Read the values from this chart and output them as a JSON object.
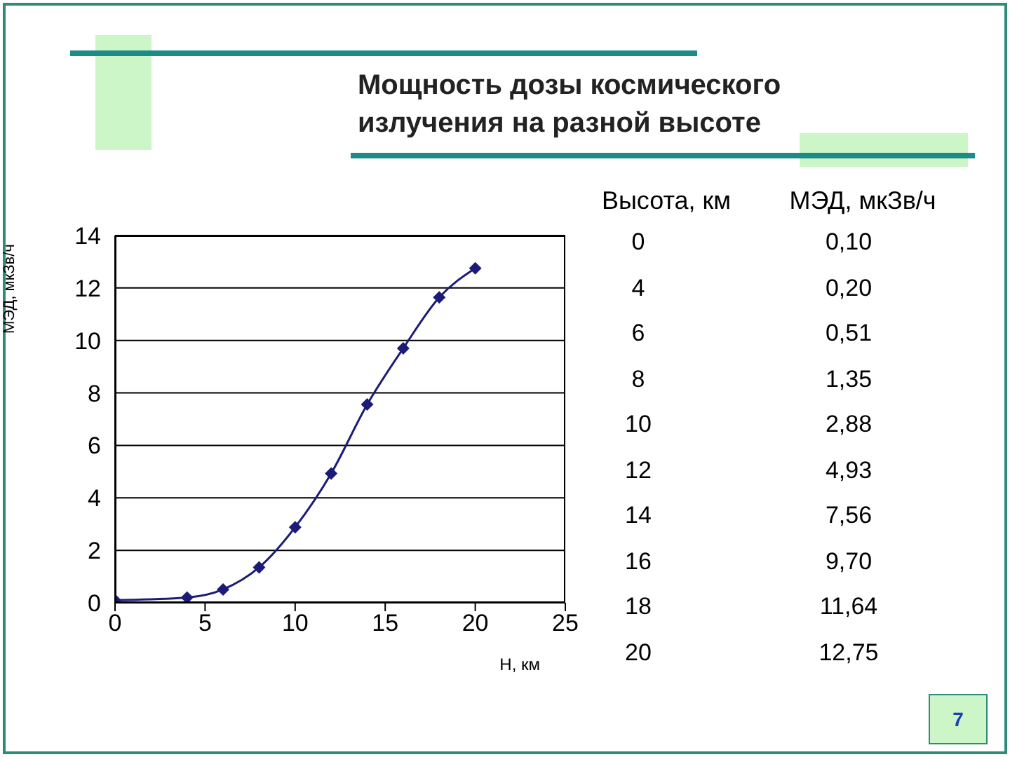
{
  "chart_data": {
    "type": "line",
    "title": "Мощность дозы космического\nизлучения на разной высоте",
    "xlabel": "Н, км",
    "ylabel": "МЭД, мкЗв/ч",
    "x": [
      0,
      4,
      6,
      8,
      10,
      12,
      14,
      16,
      18,
      20
    ],
    "series": [
      {
        "color": "#1c1c78",
        "values": [
          0.1,
          0.2,
          0.51,
          1.35,
          2.88,
          4.93,
          7.56,
          9.7,
          11.64,
          12.75
        ]
      }
    ],
    "xlim": [
      0,
      25
    ],
    "xticks": [
      0,
      5,
      10,
      15,
      20,
      25
    ],
    "ylim": [
      0,
      14
    ],
    "yticks": [
      0,
      2,
      4,
      6,
      8,
      10,
      12,
      14
    ],
    "grid": "y",
    "marker": "diamond",
    "line_style": "solid",
    "annotations": [
      "Высота, км",
      "МЭД, мкЗв/ч",
      "0",
      "0,10",
      "4",
      "0,20",
      "6",
      "0,51",
      "8",
      "1,35",
      "10",
      "2,88",
      "12",
      "4,93",
      "14",
      "7,56",
      "16",
      "9,70",
      "18",
      "11,64",
      "20",
      "12,75",
      "7"
    ]
  }
}
